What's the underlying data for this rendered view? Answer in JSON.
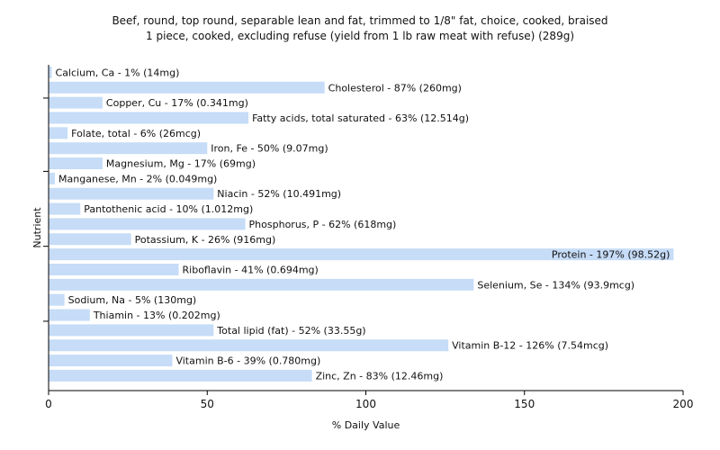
{
  "chart_data": {
    "type": "bar",
    "orientation": "horizontal",
    "title": "Beef, round, top round, separable lean and fat, trimmed to 1/8\" fat, choice, cooked, braised",
    "subtitle": "1 piece, cooked, excluding refuse (yield from 1 lb raw meat with refuse) (289g)",
    "xlabel": "% Daily Value",
    "ylabel": "Nutrient",
    "xlim": [
      0,
      200
    ],
    "xticks": [
      0,
      50,
      100,
      150,
      200
    ],
    "grid": false,
    "bar_color": "#c6dcf7",
    "categories": [
      "Calcium, Ca - 1% (14mg)",
      "Cholesterol - 87% (260mg)",
      "Copper, Cu - 17% (0.341mg)",
      "Fatty acids, total saturated - 63% (12.514g)",
      "Folate, total - 6% (26mcg)",
      "Iron, Fe - 50% (9.07mg)",
      "Magnesium, Mg - 17% (69mg)",
      "Manganese, Mn - 2% (0.049mg)",
      "Niacin - 52% (10.491mg)",
      "Pantothenic acid - 10% (1.012mg)",
      "Phosphorus, P - 62% (618mg)",
      "Potassium, K - 26% (916mg)",
      "Protein - 197% (98.52g)",
      "Riboflavin - 41% (0.694mg)",
      "Selenium, Se - 134% (93.9mcg)",
      "Sodium, Na - 5% (130mg)",
      "Thiamin - 13% (0.202mg)",
      "Total lipid (fat) - 52% (33.55g)",
      "Vitamin B-12 - 126% (7.54mcg)",
      "Vitamin B-6 - 39% (0.780mg)",
      "Zinc, Zn - 83% (12.46mg)"
    ],
    "values": [
      1,
      87,
      17,
      63,
      6,
      50,
      17,
      2,
      52,
      10,
      62,
      26,
      197,
      41,
      134,
      5,
      13,
      52,
      126,
      39,
      83
    ]
  }
}
